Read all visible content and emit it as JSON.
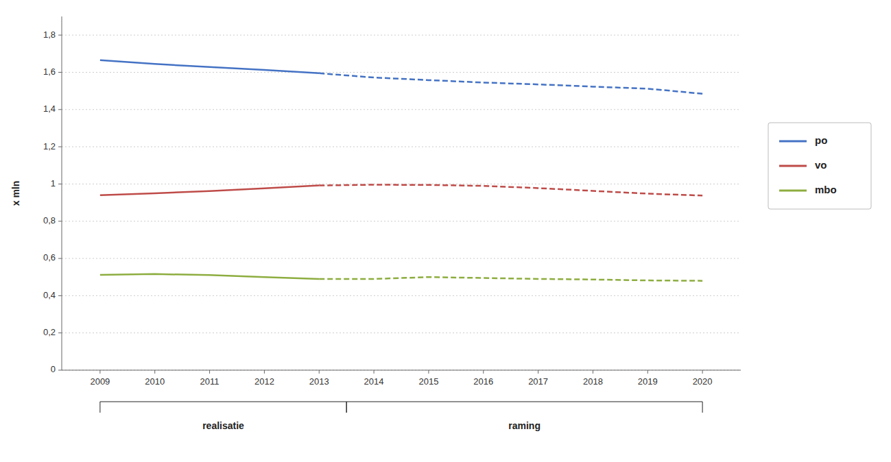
{
  "chart_data": {
    "type": "line",
    "y_label": "x mln",
    "x": [
      2009,
      2010,
      2011,
      2012,
      2013,
      2014,
      2015,
      2016,
      2017,
      2018,
      2019,
      2020
    ],
    "xlim": [
      2008.3,
      2020.7
    ],
    "xticks": [
      2009,
      2010,
      2011,
      2012,
      2013,
      2014,
      2015,
      2016,
      2017,
      2018,
      2019,
      2020
    ],
    "ylim": [
      0,
      1.9
    ],
    "yticks": [
      0,
      {
        "value": 0.2,
        "label": "0,2"
      },
      {
        "value": 0.4,
        "label": "0,4"
      },
      {
        "value": 0.6,
        "label": "0,6"
      },
      {
        "value": 0.8,
        "label": "0,8"
      },
      1,
      {
        "value": 1.2,
        "label": "1,2"
      },
      {
        "value": 1.4,
        "label": "1,4"
      },
      {
        "value": 1.6,
        "label": "1,6"
      },
      {
        "value": 1.8,
        "label": "1,8"
      }
    ],
    "grid": true,
    "legend": "right",
    "series": [
      {
        "name": "po",
        "color": "#4472C4",
        "line_style": "solid",
        "values": [
          1.665,
          1.645,
          1.628,
          1.613,
          1.595,
          null,
          null,
          null,
          null,
          null,
          null,
          null
        ]
      },
      {
        "name": "vo",
        "color": "#BE4B48",
        "line_style": "solid",
        "values": [
          0.94,
          0.95,
          0.962,
          0.977,
          0.992,
          null,
          null,
          null,
          null,
          null,
          null,
          null
        ]
      },
      {
        "name": "mbo",
        "color": "#8DAD3F",
        "line_style": "solid",
        "values": [
          0.512,
          0.516,
          0.511,
          0.5,
          0.49,
          null,
          null,
          null,
          null,
          null,
          null,
          null
        ]
      },
      {
        "name": "po",
        "color": "#4472C4",
        "line_style": "dashed",
        "values": [
          null,
          null,
          null,
          null,
          1.595,
          1.572,
          1.558,
          1.545,
          1.535,
          1.523,
          1.512,
          1.485
        ]
      },
      {
        "name": "vo",
        "color": "#BE4B48",
        "line_style": "dashed",
        "values": [
          null,
          null,
          null,
          null,
          0.992,
          0.996,
          0.995,
          0.99,
          0.978,
          0.963,
          0.948,
          0.938
        ]
      },
      {
        "name": "mbo",
        "color": "#8DAD3F",
        "line_style": "dashed",
        "values": [
          null,
          null,
          null,
          null,
          0.49,
          0.49,
          0.5,
          0.495,
          0.49,
          0.487,
          0.482,
          0.48
        ]
      }
    ],
    "annotations": [
      {
        "text": "realisatie",
        "x": [
          2009,
          2013.5
        ]
      },
      {
        "text": "raming",
        "x": [
          2013.5,
          2020
        ]
      }
    ]
  }
}
